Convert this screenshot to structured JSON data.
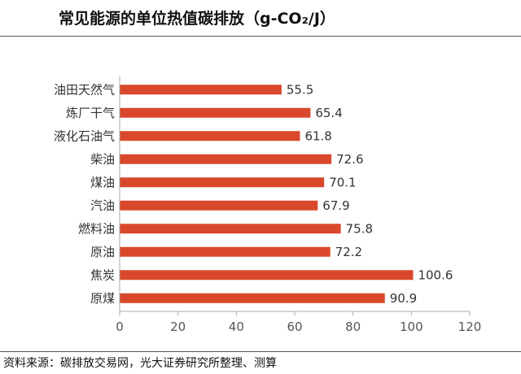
{
  "title": "常见能源的单位热值碳排放（g-CO₂/J）",
  "source": "资料来源：碳排放交易网，光大证券研究所整理、测算",
  "chart_data": {
    "type": "bar",
    "orientation": "horizontal",
    "title": "常见能源的单位热值碳排放（g-CO₂/J）",
    "categories": [
      "油田天然气",
      "炼厂干气",
      "液化石油气",
      "柴油",
      "煤油",
      "汽油",
      "燃料油",
      "原油",
      "焦炭",
      "原煤"
    ],
    "values": [
      55.5,
      65.4,
      61.8,
      72.6,
      70.1,
      67.9,
      75.8,
      72.2,
      100.6,
      90.9
    ],
    "value_labels": [
      "55.5",
      "65.4",
      "61.8",
      "72.6",
      "70.1",
      "67.9",
      "75.8",
      "72.2",
      "100.6",
      "90.9"
    ],
    "xlim": [
      0,
      120
    ],
    "xticks": [
      "0",
      "20",
      "40",
      "60",
      "80",
      "100",
      "120"
    ],
    "xlabel": "",
    "ylabel": "",
    "grid": false,
    "legend": "none",
    "bar_color": "#d9482b"
  }
}
